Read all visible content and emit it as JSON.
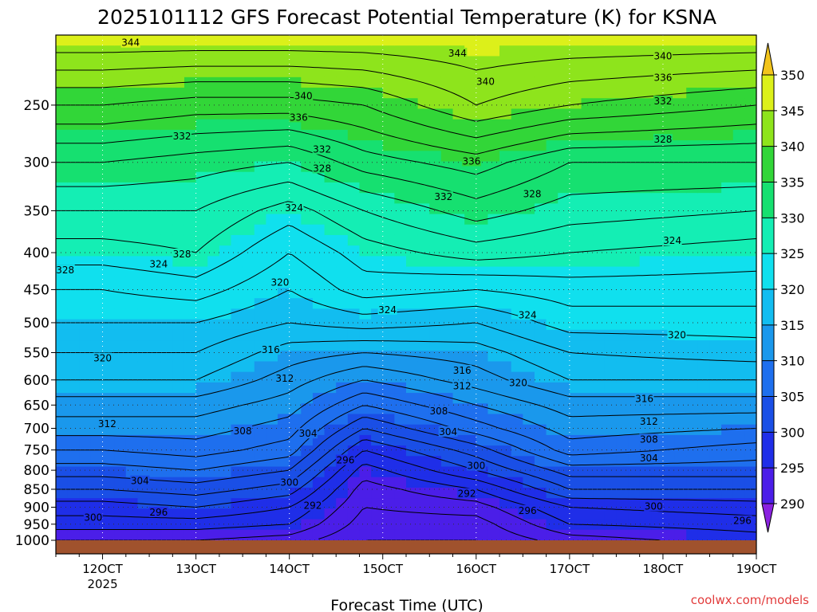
{
  "chart_data": {
    "type": "contour",
    "title": "2025101112 GFS Forecast Potential Temperature (K) for KSNA",
    "xlabel": "Forecast Time (UTC)",
    "ylabel": "",
    "x_ticks": [
      "12OCT",
      "13OCT",
      "14OCT",
      "15OCT",
      "16OCT",
      "17OCT",
      "18OCT",
      "19OCT"
    ],
    "x_year_label": "2025",
    "x_range_days": [
      11.5,
      19.0
    ],
    "y_ticks_hpa": [
      250,
      300,
      350,
      400,
      450,
      500,
      550,
      600,
      650,
      700,
      750,
      800,
      850,
      900,
      950,
      1000
    ],
    "y_range_hpa": [
      200,
      1000
    ],
    "y_scale": "log-pressure",
    "colorbar": {
      "ticks": [
        290,
        295,
        300,
        305,
        310,
        315,
        320,
        325,
        330,
        335,
        340,
        345,
        350
      ],
      "bands": [
        {
          "from": 285,
          "to": 290,
          "color": "#8a22e0"
        },
        {
          "from": 290,
          "to": 295,
          "color": "#4b1ee8"
        },
        {
          "from": 295,
          "to": 300,
          "color": "#1f2ee8"
        },
        {
          "from": 300,
          "to": 305,
          "color": "#1a4fe6"
        },
        {
          "from": 305,
          "to": 310,
          "color": "#1e6fee"
        },
        {
          "from": 310,
          "to": 315,
          "color": "#1a98ec"
        },
        {
          "from": 315,
          "to": 320,
          "color": "#12bdf0"
        },
        {
          "from": 320,
          "to": 325,
          "color": "#10e0ee"
        },
        {
          "from": 325,
          "to": 330,
          "color": "#14eeb4"
        },
        {
          "from": 330,
          "to": 335,
          "color": "#16e070"
        },
        {
          "from": 335,
          "to": 340,
          "color": "#32d638"
        },
        {
          "from": 340,
          "to": 345,
          "color": "#8ee41c"
        },
        {
          "from": 345,
          "to": 350,
          "color": "#dcf01a"
        },
        {
          "from": 350,
          "to": 355,
          "color": "#f2c41c"
        }
      ]
    },
    "contour_interval_K": 2,
    "sample_levels_hpa": [
      200,
      250,
      300,
      350,
      400,
      450,
      500,
      550,
      600,
      650,
      700,
      750,
      800,
      850,
      900,
      950,
      1000
    ],
    "series": [
      {
        "name": "theta_12.0",
        "x": 12.0,
        "values": [
          346,
          338,
          332,
          328,
          325,
          322,
          320,
          318,
          316,
          313,
          311,
          308,
          305,
          302,
          299,
          297,
          294
        ]
      },
      {
        "name": "theta_13.0",
        "x": 13.0,
        "values": [
          346,
          337,
          331,
          328,
          326,
          323,
          320,
          318,
          316,
          313,
          311,
          309,
          306,
          303,
          300,
          297,
          294
        ]
      },
      {
        "name": "theta_14.0",
        "x": 14.0,
        "values": [
          346,
          337,
          330,
          325,
          322,
          320,
          318,
          315,
          313,
          311,
          309,
          307,
          304,
          301,
          298,
          296,
          293
        ]
      },
      {
        "name": "theta_14.8",
        "x": 14.8,
        "values": [
          346,
          338,
          333,
          328,
          325,
          323,
          319,
          314,
          310,
          306,
          302,
          298,
          295,
          293,
          292,
          291,
          290
        ]
      },
      {
        "name": "theta_16.0",
        "x": 16.0,
        "values": [
          346,
          342,
          335,
          331,
          327,
          322,
          318,
          315,
          313,
          310,
          307,
          303,
          300,
          296,
          293,
          291,
          290
        ]
      },
      {
        "name": "theta_17.0",
        "x": 17.0,
        "values": [
          346,
          340,
          332,
          329,
          326,
          323,
          321,
          318,
          316,
          313,
          311,
          309,
          305,
          302,
          298,
          296,
          293
        ]
      },
      {
        "name": "theta_19.0",
        "x": 19.0,
        "values": [
          346,
          338,
          332,
          328,
          325,
          323,
          321,
          319,
          316,
          313,
          310,
          307,
          305,
          302,
          299,
          297,
          295
        ]
      }
    ],
    "contour_labels": [
      {
        "text": "344",
        "x": 12.3,
        "p": 205
      },
      {
        "text": "344",
        "x": 15.8,
        "p": 212
      },
      {
        "text": "340",
        "x": 18.0,
        "p": 214
      },
      {
        "text": "340",
        "x": 16.1,
        "p": 232
      },
      {
        "text": "340",
        "x": 14.15,
        "p": 243
      },
      {
        "text": "336",
        "x": 18.0,
        "p": 229
      },
      {
        "text": "336",
        "x": 14.1,
        "p": 260
      },
      {
        "text": "336",
        "x": 15.95,
        "p": 299
      },
      {
        "text": "332",
        "x": 12.85,
        "p": 276
      },
      {
        "text": "332",
        "x": 14.35,
        "p": 288
      },
      {
        "text": "332",
        "x": 18.0,
        "p": 247
      },
      {
        "text": "332",
        "x": 15.65,
        "p": 335
      },
      {
        "text": "328",
        "x": 14.35,
        "p": 306
      },
      {
        "text": "328",
        "x": 18.0,
        "p": 279
      },
      {
        "text": "328",
        "x": 16.6,
        "p": 332
      },
      {
        "text": "328",
        "x": 11.6,
        "p": 423
      },
      {
        "text": "328",
        "x": 12.85,
        "p": 402
      },
      {
        "text": "324",
        "x": 12.6,
        "p": 415
      },
      {
        "text": "324",
        "x": 14.05,
        "p": 347
      },
      {
        "text": "324",
        "x": 15.05,
        "p": 480
      },
      {
        "text": "324",
        "x": 16.55,
        "p": 488
      },
      {
        "text": "324",
        "x": 18.1,
        "p": 385
      },
      {
        "text": "320",
        "x": 13.9,
        "p": 440
      },
      {
        "text": "320",
        "x": 12.0,
        "p": 560
      },
      {
        "text": "320",
        "x": 16.45,
        "p": 606
      },
      {
        "text": "320",
        "x": 18.15,
        "p": 520
      },
      {
        "text": "316",
        "x": 13.8,
        "p": 545
      },
      {
        "text": "316",
        "x": 15.85,
        "p": 582
      },
      {
        "text": "316",
        "x": 17.8,
        "p": 637
      },
      {
        "text": "312",
        "x": 13.95,
        "p": 597
      },
      {
        "text": "312",
        "x": 15.85,
        "p": 612
      },
      {
        "text": "312",
        "x": 12.05,
        "p": 690
      },
      {
        "text": "312",
        "x": 17.85,
        "p": 685
      },
      {
        "text": "308",
        "x": 13.5,
        "p": 706
      },
      {
        "text": "308",
        "x": 15.6,
        "p": 663
      },
      {
        "text": "308",
        "x": 17.85,
        "p": 725
      },
      {
        "text": "304",
        "x": 14.2,
        "p": 712
      },
      {
        "text": "304",
        "x": 15.7,
        "p": 708
      },
      {
        "text": "304",
        "x": 12.4,
        "p": 828
      },
      {
        "text": "304",
        "x": 17.85,
        "p": 770
      },
      {
        "text": "300",
        "x": 11.9,
        "p": 930
      },
      {
        "text": "300",
        "x": 14.0,
        "p": 832
      },
      {
        "text": "300",
        "x": 16.0,
        "p": 789
      },
      {
        "text": "300",
        "x": 17.9,
        "p": 898
      },
      {
        "text": "296",
        "x": 12.6,
        "p": 915
      },
      {
        "text": "296",
        "x": 14.6,
        "p": 775
      },
      {
        "text": "296",
        "x": 16.55,
        "p": 910
      },
      {
        "text": "296",
        "x": 18.85,
        "p": 940
      },
      {
        "text": "292",
        "x": 14.25,
        "p": 896
      },
      {
        "text": "292",
        "x": 15.9,
        "p": 862
      }
    ],
    "ground_color": "#a0522d"
  },
  "credit": "coolwx.com/models"
}
